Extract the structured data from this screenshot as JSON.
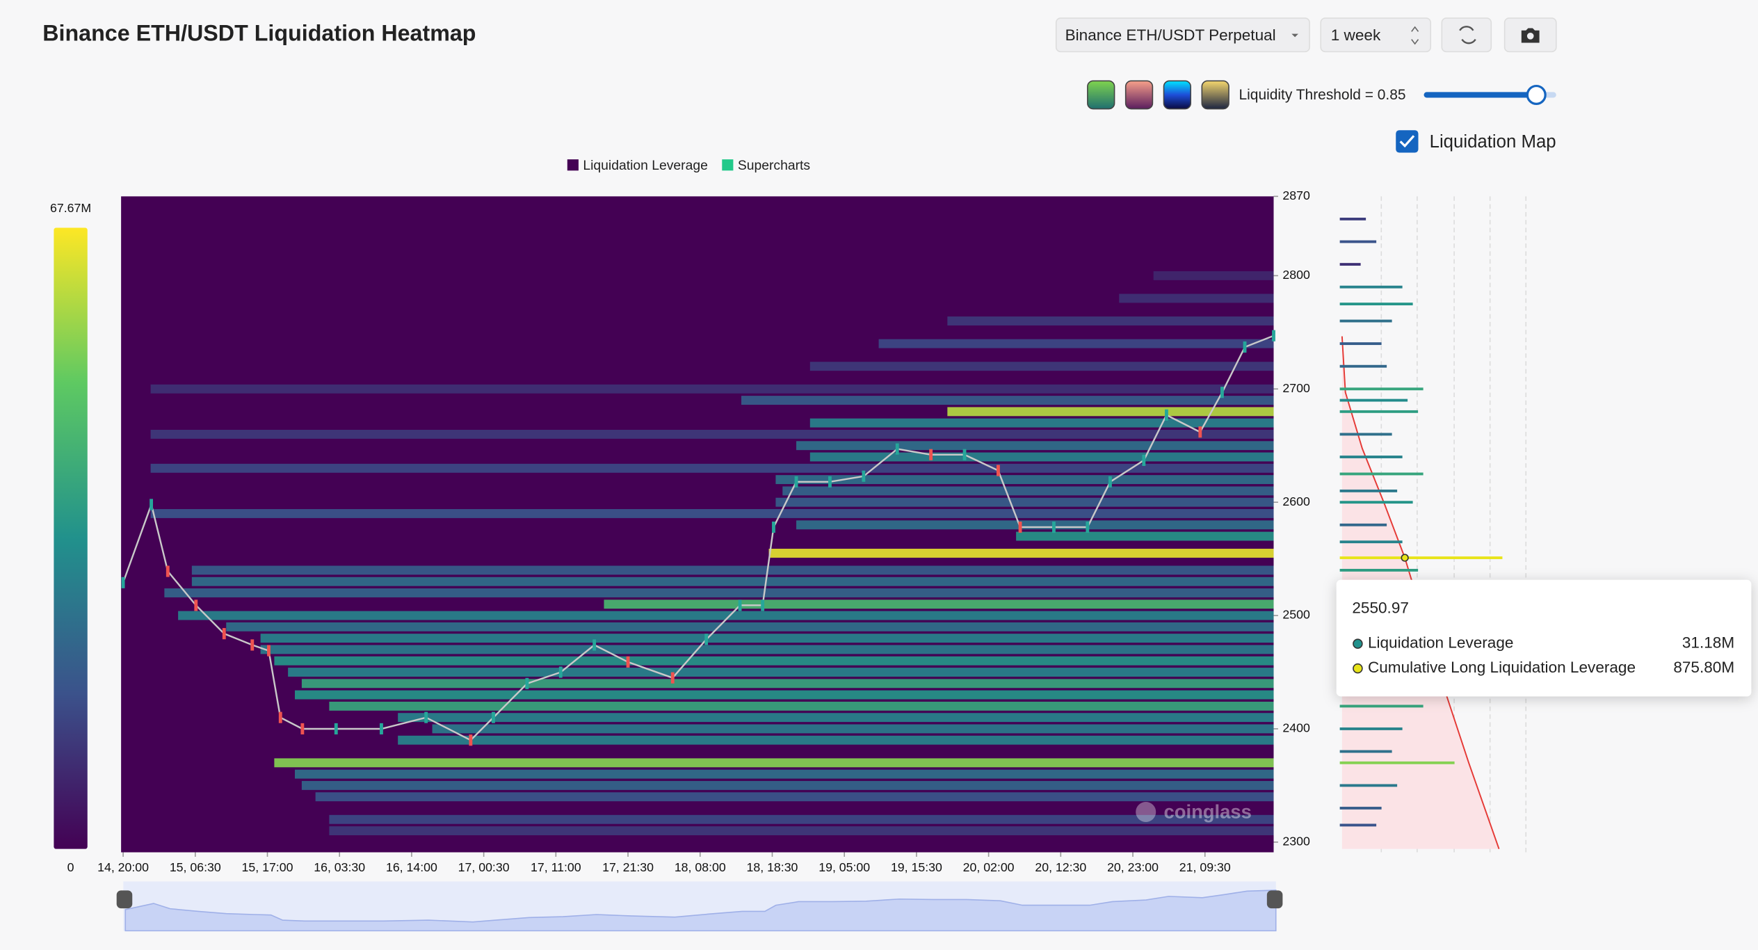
{
  "header": {
    "title": "Binance ETH/USDT Liquidation Heatmap",
    "pair_select": "Binance ETH/USDT Perpetual",
    "range_select": "1 week",
    "threshold_label": "Liquidity Threshold = 0.85",
    "threshold": 0.85,
    "map_toggle": "Liquidation Map",
    "map_checked": true
  },
  "chart_data": {
    "type": "heatmap",
    "legend": [
      {
        "name": "Liquidation Leverage",
        "color": "#440154"
      },
      {
        "name": "Supercharts",
        "color": "#22c98a"
      }
    ],
    "colorscale": [
      "#440154",
      "#3b528b",
      "#21918c",
      "#5ec962",
      "#fde725"
    ],
    "colorbar": {
      "min": 0,
      "max": {
        "value": 67.67,
        "label": "67.67M"
      }
    },
    "xlim": [
      -0.3,
      167.5
    ],
    "xticks": [
      {
        "value": 0,
        "label": "14, 20:00"
      },
      {
        "value": 10.5,
        "label": "15, 06:30"
      },
      {
        "value": 21,
        "label": "15, 17:00"
      },
      {
        "value": 31.5,
        "label": "16, 03:30"
      },
      {
        "value": 42,
        "label": "16, 14:00"
      },
      {
        "value": 52.5,
        "label": "17, 00:30"
      },
      {
        "value": 63,
        "label": "17, 11:00"
      },
      {
        "value": 73.5,
        "label": "17, 21:30"
      },
      {
        "value": 84,
        "label": "18, 08:00"
      },
      {
        "value": 94.5,
        "label": "18, 18:30"
      },
      {
        "value": 105,
        "label": "19, 05:00"
      },
      {
        "value": 115.5,
        "label": "19, 15:30"
      },
      {
        "value": 126,
        "label": "20, 02:00"
      },
      {
        "value": 136.5,
        "label": "20, 12:30"
      },
      {
        "value": 147,
        "label": "20, 23:00"
      },
      {
        "value": 157.5,
        "label": "21, 09:30"
      }
    ],
    "ylim": [
      2291,
      2870
    ],
    "yticks": [
      2300,
      2400,
      2500,
      2600,
      2700,
      2800,
      2870
    ],
    "price": {
      "up_color": "#26a69a",
      "down_color": "#ef5350",
      "x": [
        0,
        4.1,
        6.5,
        10.6,
        14.7,
        18.8,
        21.2,
        22.9,
        26.1,
        31.0,
        37.6,
        44.1,
        50.6,
        53.9,
        58.8,
        63.7,
        68.6,
        73.5,
        80.0,
        84.9,
        89.8,
        93.1,
        94.7,
        98.0,
        102.9,
        107.8,
        112.7,
        117.6,
        122.5,
        127.4,
        130.6,
        135.5,
        140.4,
        143.7,
        148.6,
        151.9,
        156.8,
        160.0,
        163.3,
        167.5
      ],
      "values": [
        2529,
        2598,
        2539,
        2509,
        2484,
        2474,
        2469,
        2410,
        2400,
        2400,
        2400,
        2410,
        2390,
        2410,
        2440,
        2450,
        2474,
        2459,
        2445,
        2479,
        2509,
        2509,
        2578,
        2618,
        2618,
        2623,
        2647,
        2642,
        2642,
        2628,
        2578,
        2578,
        2578,
        2618,
        2637,
        2677,
        2662,
        2697,
        2737,
        2747
      ]
    },
    "levels": [
      {
        "price": 2800,
        "start": 150,
        "value": 8
      },
      {
        "price": 2780,
        "start": 145,
        "value": 10
      },
      {
        "price": 2760,
        "start": 120,
        "value": 12
      },
      {
        "price": 2740,
        "start": 110,
        "value": 15
      },
      {
        "price": 2720,
        "start": 100,
        "value": 12
      },
      {
        "price": 2700,
        "start": 4,
        "value": 10
      },
      {
        "price": 2690,
        "start": 90,
        "value": 20
      },
      {
        "price": 2680,
        "start": 120,
        "value": 60
      },
      {
        "price": 2670,
        "start": 100,
        "value": 30
      },
      {
        "price": 2660,
        "start": 4,
        "value": 12
      },
      {
        "price": 2650,
        "start": 98,
        "value": 25
      },
      {
        "price": 2640,
        "start": 100,
        "value": 30
      },
      {
        "price": 2630,
        "start": 4,
        "value": 15
      },
      {
        "price": 2620,
        "start": 95,
        "value": 25
      },
      {
        "price": 2610,
        "start": 96,
        "value": 22
      },
      {
        "price": 2600,
        "start": 95,
        "value": 20
      },
      {
        "price": 2590,
        "start": 4,
        "value": 18
      },
      {
        "price": 2580,
        "start": 98,
        "value": 25
      },
      {
        "price": 2570,
        "start": 130,
        "value": 35
      },
      {
        "price": 2555,
        "start": 94,
        "value": 65
      },
      {
        "price": 2540,
        "start": 10,
        "value": 20
      },
      {
        "price": 2530,
        "start": 10,
        "value": 25
      },
      {
        "price": 2520,
        "start": 6,
        "value": 22
      },
      {
        "price": 2510,
        "start": 70,
        "value": 45
      },
      {
        "price": 2500,
        "start": 8,
        "value": 30
      },
      {
        "price": 2490,
        "start": 15,
        "value": 25
      },
      {
        "price": 2480,
        "start": 20,
        "value": 30
      },
      {
        "price": 2470,
        "start": 20,
        "value": 28
      },
      {
        "price": 2460,
        "start": 22,
        "value": 35
      },
      {
        "price": 2450,
        "start": 24,
        "value": 30
      },
      {
        "price": 2440,
        "start": 26,
        "value": 40
      },
      {
        "price": 2430,
        "start": 25,
        "value": 35
      },
      {
        "price": 2420,
        "start": 30,
        "value": 40
      },
      {
        "price": 2410,
        "start": 40,
        "value": 30
      },
      {
        "price": 2400,
        "start": 45,
        "value": 28
      },
      {
        "price": 2390,
        "start": 40,
        "value": 30
      },
      {
        "price": 2370,
        "start": 22,
        "value": 55
      },
      {
        "price": 2360,
        "start": 25,
        "value": 25
      },
      {
        "price": 2350,
        "start": 26,
        "value": 22
      },
      {
        "price": 2340,
        "start": 28,
        "value": 18
      },
      {
        "price": 2320,
        "start": 30,
        "value": 15
      },
      {
        "price": 2310,
        "start": 30,
        "value": 12
      }
    ],
    "profile": {
      "prices": [
        2850,
        2830,
        2810,
        2790,
        2775,
        2760,
        2740,
        2720,
        2700,
        2690,
        2680,
        2660,
        2640,
        2625,
        2610,
        2600,
        2580,
        2565,
        2550.97,
        2540,
        2420,
        2400,
        2380,
        2370,
        2350,
        2330,
        2315
      ],
      "values": [
        5,
        7,
        4,
        12,
        14,
        10,
        8,
        9,
        16,
        13,
        15,
        10,
        12,
        16,
        11,
        14,
        9,
        12,
        31.18,
        15,
        16,
        12,
        10,
        22,
        11,
        8,
        7
      ]
    },
    "cumulative": {
      "color": "#e53935",
      "prices": [
        2746.5,
        2697,
        2647.5,
        2598,
        2550.97,
        2430,
        2370,
        2294
      ],
      "values": [
        0,
        47,
        282,
        594,
        875.8,
        1455,
        1767,
        2190
      ]
    },
    "tooltip": {
      "price": 2550.97,
      "rows": [
        {
          "name": "Liquidation Leverage",
          "value": 31.18,
          "label": "31.18M",
          "color": "#21918c"
        },
        {
          "name": "Cumulative Long Liquidation Leverage",
          "value": 875.8,
          "label": "875.80M",
          "color": "#e8e41a"
        }
      ]
    },
    "watermark": "coinglass"
  }
}
